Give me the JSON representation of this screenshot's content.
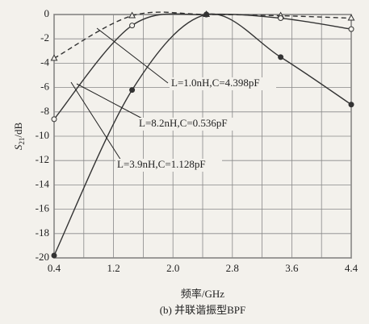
{
  "chart_data": {
    "type": "line",
    "ylabel": {
      "symbol": "S",
      "subscript": "21",
      "unit": "/dB"
    },
    "xlabel": "频率/GHz",
    "caption": "(b) 并联谐振型BPF",
    "xlim": [
      0.4,
      4.4
    ],
    "ylim": [
      -20,
      0
    ],
    "xticks": [
      0.4,
      1.2,
      {
        "value": 2,
        "label": "2.0"
      },
      2.8,
      3.6,
      4.4
    ],
    "xgrid_minor": [
      0.8,
      1.6,
      2.4,
      3.2,
      4
    ],
    "yticks": [
      0,
      -2,
      -4,
      -6,
      -8,
      -10,
      -12,
      -14,
      -16,
      -18,
      -20
    ],
    "grid": true,
    "x": [
      0.4,
      1.45,
      2.45,
      3.45,
      4.4
    ],
    "series": [
      {
        "name": "L=1.0nH,C=4.398pF",
        "color": "#333333",
        "dashed": true,
        "marker": "triangle-open",
        "values": [
          -3.6,
          -0.1,
          0,
          -0.1,
          -0.3
        ]
      },
      {
        "name": "L=8.2nH,C=0.536pF",
        "color": "#333333",
        "dashed": false,
        "marker": "circle-open",
        "values": [
          -8.6,
          -0.9,
          0,
          -0.3,
          -1.2
        ]
      },
      {
        "name": "L=3.9nH,C=1.128pF",
        "color": "#333333",
        "dashed": false,
        "marker": "circle-filled",
        "values": [
          -19.8,
          -6.2,
          0,
          -3.5,
          -7.4
        ]
      }
    ]
  }
}
